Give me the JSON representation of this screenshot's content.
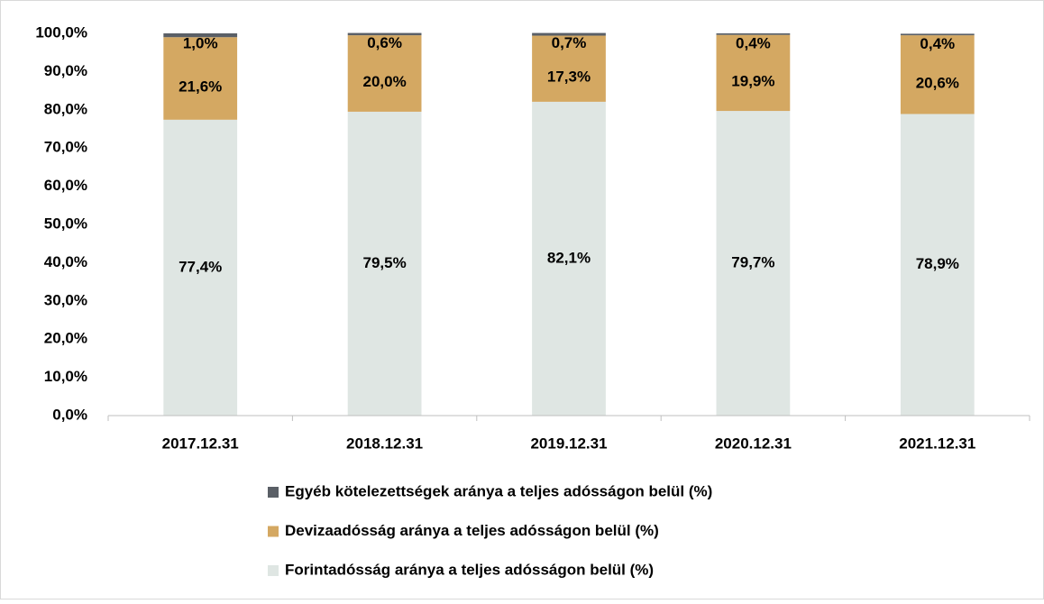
{
  "chart_data": {
    "type": "stacked_bar",
    "categories": [
      "2017.12.31",
      "2018.12.31",
      "2019.12.31",
      "2020.12.31",
      "2021.12.31"
    ],
    "series": [
      {
        "name": "Forintadósság aránya a teljes adósságon belül (%)",
        "color": "#dfe6e3",
        "values": [
          77.4,
          79.5,
          82.1,
          79.7,
          78.9
        ],
        "value_labels": [
          "77,4%",
          "79,5%",
          "82,1%",
          "79,7%",
          "78,9%"
        ]
      },
      {
        "name": "Devizaadósság aránya a teljes adósságon belül (%)",
        "color": "#d4a862",
        "values": [
          21.6,
          20.0,
          17.3,
          19.9,
          20.6
        ],
        "value_labels": [
          "21,6%",
          "20,0%",
          "17,3%",
          "19,9%",
          "20,6%"
        ]
      },
      {
        "name": "Egyéb kötelezettségek aránya a teljes adósságon belül (%)",
        "color": "#5a5f66",
        "values": [
          1.0,
          0.6,
          0.7,
          0.4,
          0.4
        ],
        "value_labels": [
          "1,0%",
          "0,6%",
          "0,7%",
          "0,4%",
          "0,4%"
        ]
      }
    ],
    "ylim": [
      0,
      100
    ],
    "yticks": [
      {
        "value": 0,
        "label": "0,0%"
      },
      {
        "value": 10,
        "label": "10,0%"
      },
      {
        "value": 20,
        "label": "20,0%"
      },
      {
        "value": 30,
        "label": "30,0%"
      },
      {
        "value": 40,
        "label": "40,0%"
      },
      {
        "value": 50,
        "label": "50,0%"
      },
      {
        "value": 60,
        "label": "60,0%"
      },
      {
        "value": 70,
        "label": "70,0%"
      },
      {
        "value": 80,
        "label": "80,0%"
      },
      {
        "value": 90,
        "label": "90,0%"
      },
      {
        "value": 100,
        "label": "100,0%"
      }
    ],
    "grid": false
  }
}
